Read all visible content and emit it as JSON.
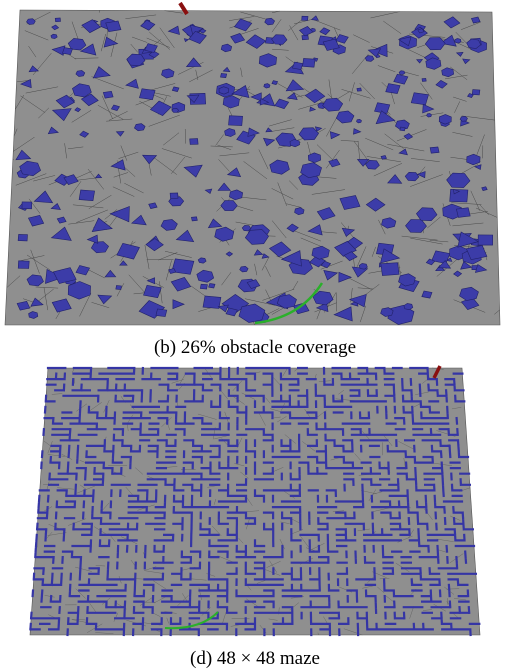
{
  "figures": [
    {
      "caption": "(b) 26% obstacle coverage"
    },
    {
      "caption": "(d) 48 × 48 maze"
    }
  ]
}
